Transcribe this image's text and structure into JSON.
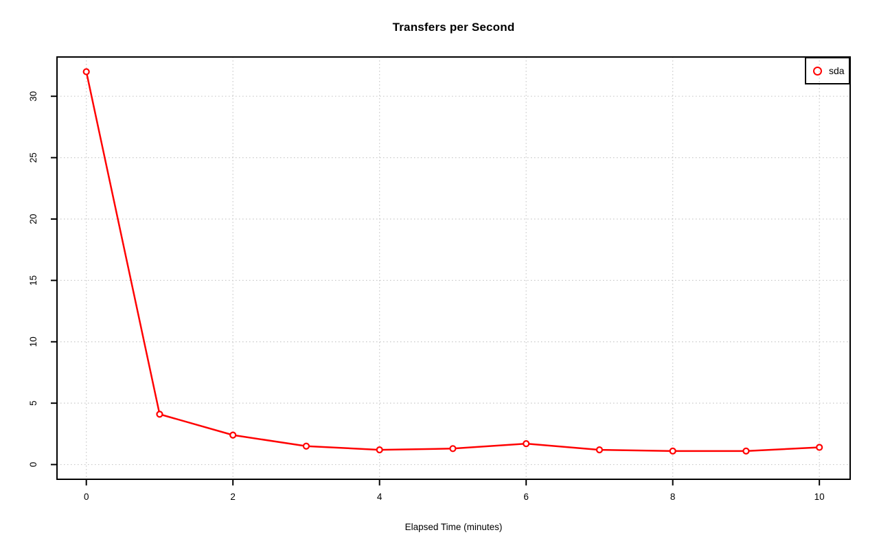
{
  "chart_data": {
    "type": "line",
    "title": "Transfers per Second",
    "xlabel": "Elapsed Time (minutes)",
    "ylabel": "",
    "x": [
      0,
      1,
      2,
      3,
      4,
      5,
      6,
      7,
      8,
      9,
      10
    ],
    "series": [
      {
        "name": "sda",
        "color": "#FF0000",
        "marker": "open-circle",
        "values": [
          32.0,
          4.1,
          2.4,
          1.5,
          1.2,
          1.3,
          1.7,
          1.2,
          1.1,
          1.1,
          1.4
        ]
      }
    ],
    "xticks": [
      0,
      2,
      4,
      6,
      8,
      10
    ],
    "yticks": [
      0,
      5,
      10,
      15,
      20,
      25,
      30
    ],
    "xlim": [
      -0.4,
      10.42
    ],
    "ylim": [
      -1.2,
      33.2
    ],
    "grid": true,
    "grid_color": "#C8C8C8",
    "grid_style": "dotted",
    "legend_position": "topright",
    "axis_color": "#000000",
    "tick_label_color": "#000000"
  }
}
